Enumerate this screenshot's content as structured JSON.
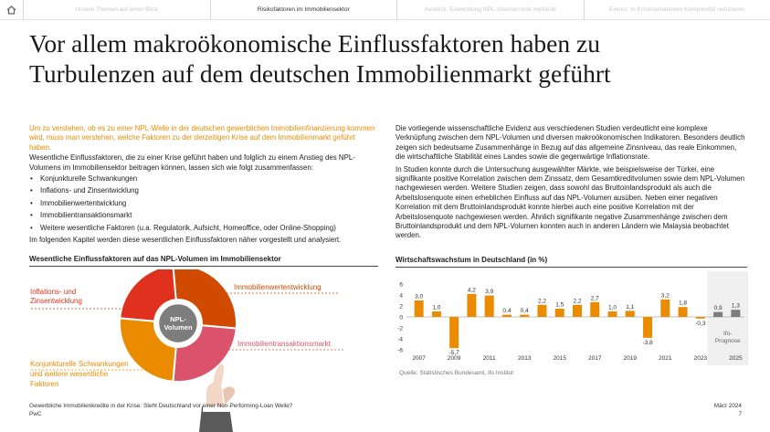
{
  "nav": {
    "tabs": [
      {
        "label": "Unsere Themen auf einen Blick"
      },
      {
        "label": "Risikofaktoren im Immobiliensektor"
      },
      {
        "label": "Ausblick: Entwicklung NPL-Volumen und Verkäufe"
      },
      {
        "label": "Exkurs: In Krisensituationen Komplexität reduzieren"
      }
    ]
  },
  "title_line1": "Vor allem makroökonomische Einflussfaktoren haben zu",
  "title_line2": "Turbulenzen auf dem deutschen Immobilienmarkt geführt",
  "left": {
    "intro": "Um zu verstehen, ob es zu einer NPL-Welle in der deutschen gewerblichen Immobilienfinanzierung kommen wird, muss man verstehen, welche Faktoren zu der derzeitigen Krise auf dem Immobilienmarkt geführt haben.",
    "lead": "Wesentliche Einflussfaktoren, die zu einer Krise geführt haben und folglich zu einem Anstieg des NPL-Volumens im Immobiliensektor beitragen können, lassen sich wie folgt zusammenfassen:",
    "bullets": [
      "Konjunkturelle Schwankungen",
      "Inflations- und Zinsentwicklung",
      "Immobilienwertentwicklung",
      "Immobilientransaktionsmarkt",
      "Weitere wesentliche Faktoren (u.a. Regulatorik, Aufsicht, Homeoffice, oder Online-Shopping)"
    ],
    "closing": "Im folgenden Kapitel werden diese wesentlichen Einflussfaktoren näher vorgestellt und analysiert."
  },
  "right": {
    "p1": "Die vorliegende wissenschaftliche Evidenz aus verschiedenen Studien verdeutlicht eine komplexe Verknüpfung zwischen dem NPL-Volumen und diversen makroökonomischen Indikatoren. Besonders deutlich zeigen sich bedeutsame Zusammenhänge in Bezug auf das allgemeine Zinsniveau, das reale Einkommen, die wirtschaftliche Stabilität eines Landes sowie die gegenwärtige Inflationsrate.",
    "p2": "In Studien konnte durch die Untersuchung ausgewählter Märkte, wie beispielsweise der Türkei, eine signifikante positive Korrelation zwischen dem Zinssatz, dem Gesamtkreditvolumen sowie dem NPL-Volumen nachgewiesen werden. Weitere Studien zeigen, dass sowohl das Bruttoinlandsprodukt als auch die Arbeitslosenquote einen erheblichen Einfluss auf das NPL-Volumen ausüben. Neben einer negativen Korrelation mit dem Bruttoinlandsprodukt konnte hierbei auch eine positive Korrelation mit der Arbeitslosenquote nachgewiesen werden. Ähnlich signifikante negative Zusammenhänge zwischen dem Bruttoinlandsprodukt und dem NPL-Volumen konnten auch in anderen Ländern wie Malaysia beobachtet werden."
  },
  "wheel": {
    "heading": "Wesentliche Einflussfaktoren auf das NPL-Volumen im Immobiliensektor",
    "center_line1": "NPL-",
    "center_line2": "Volumen",
    "labels": {
      "inflation_1": "Inflations- und",
      "inflation_2": "Zinsentwicklung",
      "value": "Immobilienwertentwicklung",
      "transaction": "Immobilientransaktionsmarkt",
      "cyc_1": "Konjunkturelle Schwankungen",
      "cyc_2": "und weitere wesentliche",
      "cyc_3": "Faktoren"
    },
    "colors": {
      "inflation": "#e0301e",
      "value": "#d04a02",
      "transaction": "#db536a",
      "cyclical": "#eb8c00",
      "center": "#7d7d7d"
    }
  },
  "chart_data": {
    "type": "bar",
    "title": "Wirtschaftswachstum in Deutschland (in %)",
    "categories": [
      "2007",
      "2008",
      "2009",
      "2010",
      "2011",
      "2012",
      "2013",
      "2014",
      "2015",
      "2016",
      "2017",
      "2018",
      "2019",
      "2020",
      "2021",
      "2022",
      "2023",
      "2024",
      "2025"
    ],
    "values": [
      3.0,
      1.0,
      -5.7,
      4.2,
      3.9,
      0.4,
      0.4,
      2.2,
      1.5,
      2.2,
      2.7,
      1.0,
      1.1,
      -3.8,
      3.2,
      1.8,
      -0.3,
      0.9,
      1.3
    ],
    "value_labels": [
      "3,0",
      "1,0",
      "-5,7",
      "4,2",
      "3,9",
      "0,4",
      "0,4",
      "2,2",
      "1,5",
      "2,2",
      "2,7",
      "1,0",
      "1,1",
      "-3,8",
      "3,2",
      "1,8",
      "-0,3",
      "0,9",
      "1,3"
    ],
    "x_tick_labels": [
      "2007",
      "2009",
      "2011",
      "2013",
      "2015",
      "2017",
      "2019",
      "2021",
      "2023",
      "2025"
    ],
    "y_ticks": [
      6,
      4,
      2,
      0,
      -2,
      -4,
      -6
    ],
    "y_tick_labels": [
      "6",
      "4",
      "2",
      "0",
      "-2",
      "-4",
      "-6"
    ],
    "ylim": [
      -6,
      6
    ],
    "forecast_from": "2024",
    "forecast_label_1": "Ifo-",
    "forecast_label_2": "Prognose",
    "colors": {
      "actual": "#eb8c00",
      "forecast": "#7d7d7d",
      "forecast_bg": "#f0f0f0"
    },
    "source": "Quelle: Statistisches Bundesamt, ifo Institut"
  },
  "footer": {
    "left_line1": "Gewerbliche Immobilienkredite in der Krise: Steht Deutschland vor einer Non-Performing-Loan Welle?",
    "left_line2": "PwC",
    "date": "März 2024",
    "page": "7"
  }
}
